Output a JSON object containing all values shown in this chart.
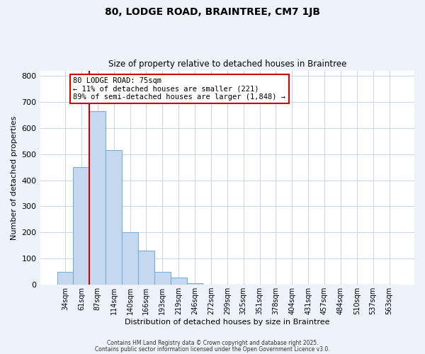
{
  "title": "80, LODGE ROAD, BRAINTREE, CM7 1JB",
  "subtitle": "Size of property relative to detached houses in Braintree",
  "xlabel": "Distribution of detached houses by size in Braintree",
  "ylabel": "Number of detached properties",
  "bar_labels": [
    "34sqm",
    "61sqm",
    "87sqm",
    "114sqm",
    "140sqm",
    "166sqm",
    "193sqm",
    "219sqm",
    "246sqm",
    "272sqm",
    "299sqm",
    "325sqm",
    "351sqm",
    "378sqm",
    "404sqm",
    "431sqm",
    "457sqm",
    "484sqm",
    "510sqm",
    "537sqm",
    "563sqm"
  ],
  "bar_values": [
    50,
    450,
    665,
    515,
    200,
    130,
    48,
    28,
    5,
    0,
    0,
    0,
    0,
    0,
    0,
    0,
    0,
    0,
    0,
    0,
    0
  ],
  "bar_color": "#c5d8f0",
  "bar_edge_color": "#7aafd4",
  "vline_color": "#cc0000",
  "ylim": [
    0,
    820
  ],
  "yticks": [
    0,
    100,
    200,
    300,
    400,
    500,
    600,
    700,
    800
  ],
  "annotation_title": "80 LODGE ROAD: 75sqm",
  "annotation_line1": "← 11% of detached houses are smaller (221)",
  "annotation_line2": "89% of semi-detached houses are larger (1,848) →",
  "footer1": "Contains HM Land Registry data © Crown copyright and database right 2025.",
  "footer2": "Contains public sector information licensed under the Open Government Licence v3.0.",
  "background_color": "#eef2fb",
  "plot_background_color": "#ffffff",
  "grid_color": "#c8d4e8"
}
